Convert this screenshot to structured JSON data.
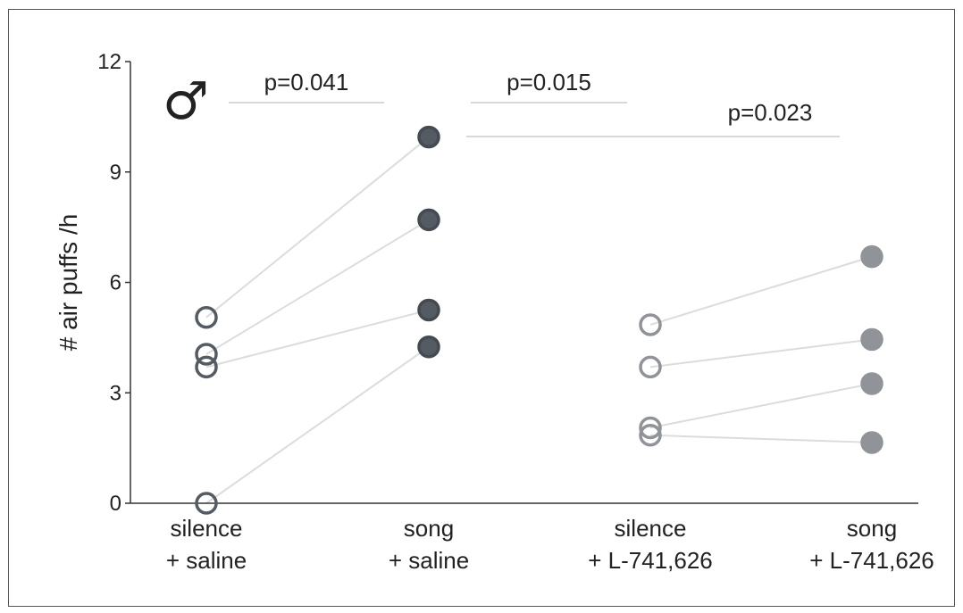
{
  "chart_data": {
    "type": "scatter",
    "title": "",
    "xlabel": "",
    "ylabel": "# air puffs /h",
    "ylim": [
      0,
      12
    ],
    "yticks": [
      0,
      3,
      6,
      9,
      12
    ],
    "categories": [
      {
        "line1": "silence",
        "line2": "+ saline"
      },
      {
        "line1": "song",
        "line2": "+ saline"
      },
      {
        "line1": "silence",
        "line2": "+ L-741,626"
      },
      {
        "line1": "song",
        "line2": "+ L-741,626"
      }
    ],
    "groups": [
      {
        "categories": [
          0,
          1
        ],
        "subjects": [
          [
            5.05,
            9.95
          ],
          [
            4.05,
            7.7
          ],
          [
            3.7,
            5.25
          ],
          [
            0.0,
            4.25
          ]
        ]
      },
      {
        "categories": [
          2,
          3
        ],
        "subjects": [
          [
            4.85,
            6.7
          ],
          [
            3.7,
            4.45
          ],
          [
            2.05,
            3.25
          ],
          [
            1.85,
            1.65
          ]
        ]
      }
    ],
    "marker_styles": [
      {
        "fill": "none",
        "stroke": "#555b62"
      },
      {
        "fill": "#555b62",
        "stroke": "#444a50"
      },
      {
        "fill": "none",
        "stroke": "#909498"
      },
      {
        "fill": "#909498",
        "stroke": "#909498"
      }
    ],
    "connector_color": "#dcdcdc",
    "significance": [
      {
        "label": "p=0.041",
        "from": 0,
        "to": 1
      },
      {
        "label": "p=0.015",
        "from": 1,
        "to": 2
      },
      {
        "label": "p=0.023",
        "from": 1,
        "to": 3
      }
    ],
    "annotation": "♂",
    "grid": false,
    "legend": "none"
  }
}
